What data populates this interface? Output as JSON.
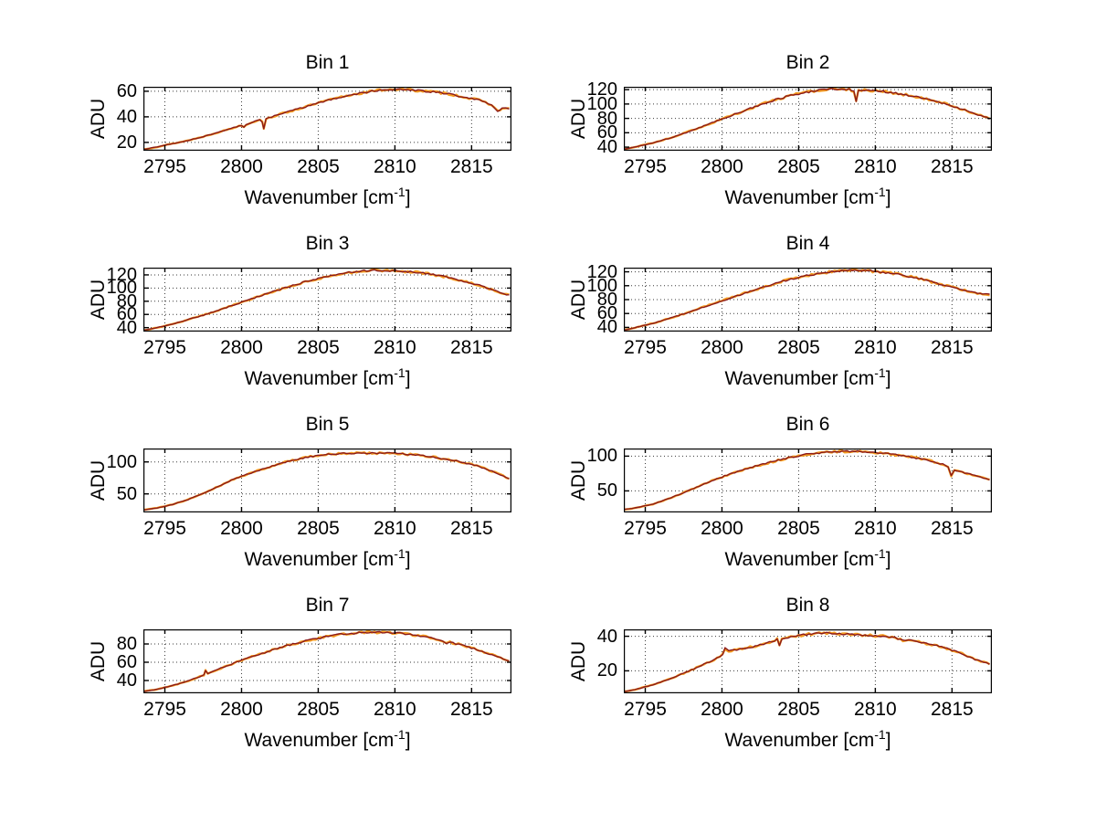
{
  "figure": {
    "background": "#ffffff",
    "ylabel": "ADU",
    "xlabel_pre": "Wavenumber [cm",
    "xlabel_sup": "-1",
    "xlabel_post": "]",
    "grid_color": "#3a3a3a",
    "axis_color": "#000000",
    "trace_colors": {
      "under_trace": "#f49b20",
      "top_trace": "#8b1a1a"
    }
  },
  "chart_data": [
    {
      "type": "line",
      "title": "Bin 1",
      "xlabel": "Wavenumber [cm^-1]",
      "ylabel": "ADU",
      "xlim": [
        2793.6,
        2817.6
      ],
      "ylim": [
        13.5,
        63.5
      ],
      "xticks": [
        2795,
        2800,
        2805,
        2810,
        2815
      ],
      "yticks": [
        20,
        40,
        60
      ],
      "grid": true,
      "noise_amp": 0.7,
      "series": [
        {
          "name": "under-trace",
          "color": "#f49b20"
        },
        {
          "name": "top-trace",
          "color": "#8b1a1a"
        }
      ],
      "points": [
        [
          2793.6,
          14.5
        ],
        [
          2794.5,
          16.5
        ],
        [
          2795.5,
          19
        ],
        [
          2796.5,
          21.5
        ],
        [
          2797.5,
          24.5
        ],
        [
          2798.5,
          28
        ],
        [
          2799.5,
          31.5
        ],
        [
          2800.0,
          33.5
        ],
        [
          2800.15,
          32
        ],
        [
          2800.3,
          34
        ],
        [
          2801.2,
          38
        ],
        [
          2801.35,
          36
        ],
        [
          2801.45,
          31
        ],
        [
          2801.6,
          38.5
        ],
        [
          2802.5,
          42
        ],
        [
          2803.5,
          45.5
        ],
        [
          2804.5,
          49
        ],
        [
          2805.5,
          52.5
        ],
        [
          2806.5,
          55.5
        ],
        [
          2807.5,
          58
        ],
        [
          2808.5,
          60
        ],
        [
          2809.5,
          61.5
        ],
        [
          2810.5,
          61.5
        ],
        [
          2811.5,
          60.5
        ],
        [
          2812.5,
          59.5
        ],
        [
          2813.5,
          58
        ],
        [
          2814.5,
          55.5
        ],
        [
          2815.5,
          53
        ],
        [
          2816.3,
          49.5
        ],
        [
          2816.7,
          44.5
        ],
        [
          2817.0,
          46.5
        ],
        [
          2817.45,
          46.5
        ]
      ]
    },
    {
      "type": "line",
      "title": "Bin 2",
      "xlabel": "Wavenumber [cm^-1]",
      "ylabel": "ADU",
      "xlim": [
        2793.6,
        2817.6
      ],
      "ylim": [
        35,
        124
      ],
      "xticks": [
        2795,
        2800,
        2805,
        2810,
        2815
      ],
      "yticks": [
        40,
        60,
        80,
        100,
        120
      ],
      "grid": true,
      "noise_amp": 1.4,
      "series": [
        {
          "name": "under-trace",
          "color": "#f49b20"
        },
        {
          "name": "top-trace",
          "color": "#8b1a1a"
        }
      ],
      "points": [
        [
          2793.6,
          37
        ],
        [
          2794.5,
          41
        ],
        [
          2795.5,
          46
        ],
        [
          2796.5,
          52
        ],
        [
          2797.5,
          59
        ],
        [
          2798.5,
          67
        ],
        [
          2799.5,
          75
        ],
        [
          2800.5,
          83
        ],
        [
          2801.5,
          91
        ],
        [
          2802.5,
          99
        ],
        [
          2803.5,
          106
        ],
        [
          2804.5,
          112
        ],
        [
          2805.5,
          116.5
        ],
        [
          2806.5,
          119.5
        ],
        [
          2807.5,
          121
        ],
        [
          2808.3,
          120
        ],
        [
          2808.6,
          118
        ],
        [
          2808.75,
          104
        ],
        [
          2808.9,
          118.5
        ],
        [
          2809.5,
          119
        ],
        [
          2810.5,
          117.5
        ],
        [
          2811.5,
          114.5
        ],
        [
          2812.5,
          111
        ],
        [
          2813.5,
          106.5
        ],
        [
          2814.5,
          101
        ],
        [
          2815.5,
          94
        ],
        [
          2816.5,
          86.5
        ],
        [
          2817.45,
          79.5
        ]
      ]
    },
    {
      "type": "line",
      "title": "Bin 3",
      "xlabel": "Wavenumber [cm^-1]",
      "ylabel": "ADU",
      "xlim": [
        2793.6,
        2817.6
      ],
      "ylim": [
        34,
        131
      ],
      "xticks": [
        2795,
        2800,
        2805,
        2810,
        2815
      ],
      "yticks": [
        40,
        60,
        80,
        100,
        120
      ],
      "grid": true,
      "noise_amp": 1.4,
      "series": [
        {
          "name": "under-trace",
          "color": "#f49b20"
        },
        {
          "name": "top-trace",
          "color": "#8b1a1a"
        }
      ],
      "points": [
        [
          2793.6,
          36
        ],
        [
          2794.5,
          40
        ],
        [
          2795.5,
          45.5
        ],
        [
          2796.5,
          52
        ],
        [
          2797.5,
          59
        ],
        [
          2798.5,
          66.5
        ],
        [
          2799.5,
          74.5
        ],
        [
          2800.5,
          82.5
        ],
        [
          2801.5,
          90.5
        ],
        [
          2802.5,
          98
        ],
        [
          2803.5,
          105
        ],
        [
          2804.5,
          111.5
        ],
        [
          2805.5,
          117
        ],
        [
          2806.5,
          121.5
        ],
        [
          2807.5,
          125
        ],
        [
          2808.5,
          127
        ],
        [
          2809.5,
          127
        ],
        [
          2810.5,
          125.5
        ],
        [
          2811.5,
          123.5
        ],
        [
          2812.5,
          120.5
        ],
        [
          2813.5,
          116
        ],
        [
          2814.5,
          110.5
        ],
        [
          2815.5,
          104
        ],
        [
          2816.5,
          96.5
        ],
        [
          2817.45,
          89
        ]
      ]
    },
    {
      "type": "line",
      "title": "Bin 4",
      "xlabel": "Wavenumber [cm^-1]",
      "ylabel": "ADU",
      "xlim": [
        2793.6,
        2817.6
      ],
      "ylim": [
        34,
        126
      ],
      "xticks": [
        2795,
        2800,
        2805,
        2810,
        2815
      ],
      "yticks": [
        40,
        60,
        80,
        100,
        120
      ],
      "grid": true,
      "noise_amp": 1.4,
      "series": [
        {
          "name": "under-trace",
          "color": "#f49b20"
        },
        {
          "name": "top-trace",
          "color": "#8b1a1a"
        }
      ],
      "points": [
        [
          2793.6,
          36
        ],
        [
          2794.5,
          40.5
        ],
        [
          2795.5,
          46
        ],
        [
          2796.5,
          52.5
        ],
        [
          2797.5,
          59.5
        ],
        [
          2798.5,
          67
        ],
        [
          2799.5,
          74.5
        ],
        [
          2800.5,
          82
        ],
        [
          2801.5,
          89.5
        ],
        [
          2802.5,
          96.5
        ],
        [
          2803.5,
          103.5
        ],
        [
          2804.5,
          109.5
        ],
        [
          2805.5,
          114.5
        ],
        [
          2806.5,
          118.5
        ],
        [
          2807.5,
          121
        ],
        [
          2808.5,
          122
        ],
        [
          2809.5,
          121.5
        ],
        [
          2810.5,
          119.5
        ],
        [
          2811.5,
          116.5
        ],
        [
          2812.5,
          112
        ],
        [
          2813.5,
          106.5
        ],
        [
          2814.5,
          100.5
        ],
        [
          2815.5,
          95
        ],
        [
          2816.5,
          90
        ],
        [
          2817.0,
          88
        ],
        [
          2817.45,
          87.5
        ]
      ]
    },
    {
      "type": "line",
      "title": "Bin 5",
      "xlabel": "Wavenumber [cm^-1]",
      "ylabel": "ADU",
      "xlim": [
        2793.6,
        2817.6
      ],
      "ylim": [
        21,
        121
      ],
      "xticks": [
        2795,
        2800,
        2805,
        2810,
        2815
      ],
      "yticks": [
        50,
        100
      ],
      "grid": true,
      "noise_amp": 1.2,
      "series": [
        {
          "name": "under-trace",
          "color": "#f49b20"
        },
        {
          "name": "top-trace",
          "color": "#8b1a1a"
        }
      ],
      "points": [
        [
          2793.6,
          25
        ],
        [
          2794.5,
          28
        ],
        [
          2795.5,
          33.5
        ],
        [
          2796.5,
          41
        ],
        [
          2797.5,
          51
        ],
        [
          2798.5,
          62
        ],
        [
          2799.5,
          73
        ],
        [
          2800.5,
          82
        ],
        [
          2801.5,
          90
        ],
        [
          2802.5,
          97.5
        ],
        [
          2803.5,
          103.5
        ],
        [
          2804.5,
          108
        ],
        [
          2805.5,
          111.5
        ],
        [
          2806.5,
          113
        ],
        [
          2807.5,
          114
        ],
        [
          2808.5,
          113.5
        ],
        [
          2809.5,
          114
        ],
        [
          2810.5,
          112.5
        ],
        [
          2811.5,
          110.5
        ],
        [
          2812.5,
          107.5
        ],
        [
          2813.5,
          103.5
        ],
        [
          2814.5,
          99
        ],
        [
          2815.5,
          93
        ],
        [
          2816.5,
          84
        ],
        [
          2817.45,
          73.5
        ]
      ]
    },
    {
      "type": "line",
      "title": "Bin 6",
      "xlabel": "Wavenumber [cm^-1]",
      "ylabel": "ADU",
      "xlim": [
        2793.6,
        2817.6
      ],
      "ylim": [
        19,
        111
      ],
      "xticks": [
        2795,
        2800,
        2805,
        2810,
        2815
      ],
      "yticks": [
        50,
        100
      ],
      "grid": true,
      "noise_amp": 1.2,
      "series": [
        {
          "name": "under-trace",
          "color": "#f49b20"
        },
        {
          "name": "top-trace",
          "color": "#8b1a1a"
        }
      ],
      "points": [
        [
          2793.6,
          23
        ],
        [
          2794.5,
          26
        ],
        [
          2795.5,
          31
        ],
        [
          2796.5,
          38.5
        ],
        [
          2797.5,
          47.5
        ],
        [
          2798.5,
          57
        ],
        [
          2799.5,
          66
        ],
        [
          2800.5,
          74
        ],
        [
          2801.5,
          81
        ],
        [
          2802.5,
          87.5
        ],
        [
          2803.5,
          93
        ],
        [
          2804.5,
          98.5
        ],
        [
          2805.5,
          102.5
        ],
        [
          2806.5,
          105
        ],
        [
          2807.5,
          106.5
        ],
        [
          2808.5,
          107
        ],
        [
          2809.5,
          106
        ],
        [
          2810.5,
          104
        ],
        [
          2811.5,
          101.5
        ],
        [
          2812.5,
          98
        ],
        [
          2813.5,
          93.5
        ],
        [
          2814.4,
          88.5
        ],
        [
          2814.75,
          85
        ],
        [
          2814.95,
          71.5
        ],
        [
          2815.15,
          80
        ],
        [
          2815.5,
          78
        ],
        [
          2816.5,
          72
        ],
        [
          2817.45,
          66.5
        ]
      ]
    },
    {
      "type": "line",
      "title": "Bin 7",
      "xlabel": "Wavenumber [cm^-1]",
      "ylabel": "ADU",
      "xlim": [
        2793.6,
        2817.6
      ],
      "ylim": [
        26,
        96
      ],
      "xticks": [
        2795,
        2800,
        2805,
        2810,
        2815
      ],
      "yticks": [
        40,
        60,
        80
      ],
      "grid": true,
      "noise_amp": 1.0,
      "series": [
        {
          "name": "under-trace",
          "color": "#f49b20"
        },
        {
          "name": "top-trace",
          "color": "#8b1a1a"
        }
      ],
      "points": [
        [
          2793.6,
          28
        ],
        [
          2794.5,
          30.5
        ],
        [
          2795.5,
          34.5
        ],
        [
          2796.5,
          39.5
        ],
        [
          2797.3,
          44.5
        ],
        [
          2797.55,
          46
        ],
        [
          2797.65,
          51
        ],
        [
          2797.8,
          47.5
        ],
        [
          2798.5,
          52.5
        ],
        [
          2799.5,
          59
        ],
        [
          2800.5,
          65
        ],
        [
          2801.5,
          70.5
        ],
        [
          2802.5,
          76
        ],
        [
          2803.5,
          80.5
        ],
        [
          2804.5,
          84.5
        ],
        [
          2805.5,
          88
        ],
        [
          2806.5,
          90.5
        ],
        [
          2807.5,
          92
        ],
        [
          2808.5,
          93
        ],
        [
          2809.5,
          92.5
        ],
        [
          2810.5,
          91.5
        ],
        [
          2811.5,
          89.5
        ],
        [
          2812.5,
          86.5
        ],
        [
          2813.1,
          84
        ],
        [
          2813.35,
          80.5
        ],
        [
          2813.6,
          82
        ],
        [
          2814.5,
          78
        ],
        [
          2815.5,
          73
        ],
        [
          2816.5,
          67
        ],
        [
          2817.45,
          61.5
        ]
      ]
    },
    {
      "type": "line",
      "title": "Bin 8",
      "xlabel": "Wavenumber [cm^-1]",
      "ylabel": "ADU",
      "xlim": [
        2793.6,
        2817.6
      ],
      "ylim": [
        7,
        44
      ],
      "xticks": [
        2795,
        2800,
        2805,
        2810,
        2815
      ],
      "yticks": [
        20,
        40
      ],
      "grid": true,
      "noise_amp": 0.55,
      "series": [
        {
          "name": "under-trace",
          "color": "#f49b20"
        },
        {
          "name": "top-trace",
          "color": "#8b1a1a"
        }
      ],
      "points": [
        [
          2793.6,
          8
        ],
        [
          2794.5,
          9.5
        ],
        [
          2795.5,
          12
        ],
        [
          2796.5,
          15
        ],
        [
          2797.5,
          18.5
        ],
        [
          2798.5,
          22.5
        ],
        [
          2799.5,
          26.5
        ],
        [
          2800.05,
          29.5
        ],
        [
          2800.2,
          33
        ],
        [
          2800.45,
          31.5
        ],
        [
          2801.5,
          33
        ],
        [
          2802.5,
          35
        ],
        [
          2803.3,
          37
        ],
        [
          2803.6,
          38.5
        ],
        [
          2803.75,
          35
        ],
        [
          2803.9,
          38.5
        ],
        [
          2804.5,
          39.5
        ],
        [
          2805.5,
          41
        ],
        [
          2806.5,
          42
        ],
        [
          2807.5,
          41.5
        ],
        [
          2808.5,
          41
        ],
        [
          2809.5,
          40.5
        ],
        [
          2810.5,
          40
        ],
        [
          2811.3,
          39
        ],
        [
          2811.8,
          37.5
        ],
        [
          2812.5,
          37.5
        ],
        [
          2813.5,
          35.5
        ],
        [
          2814.5,
          33.5
        ],
        [
          2815.5,
          30.5
        ],
        [
          2816.5,
          26.5
        ],
        [
          2817.45,
          24
        ]
      ]
    }
  ]
}
